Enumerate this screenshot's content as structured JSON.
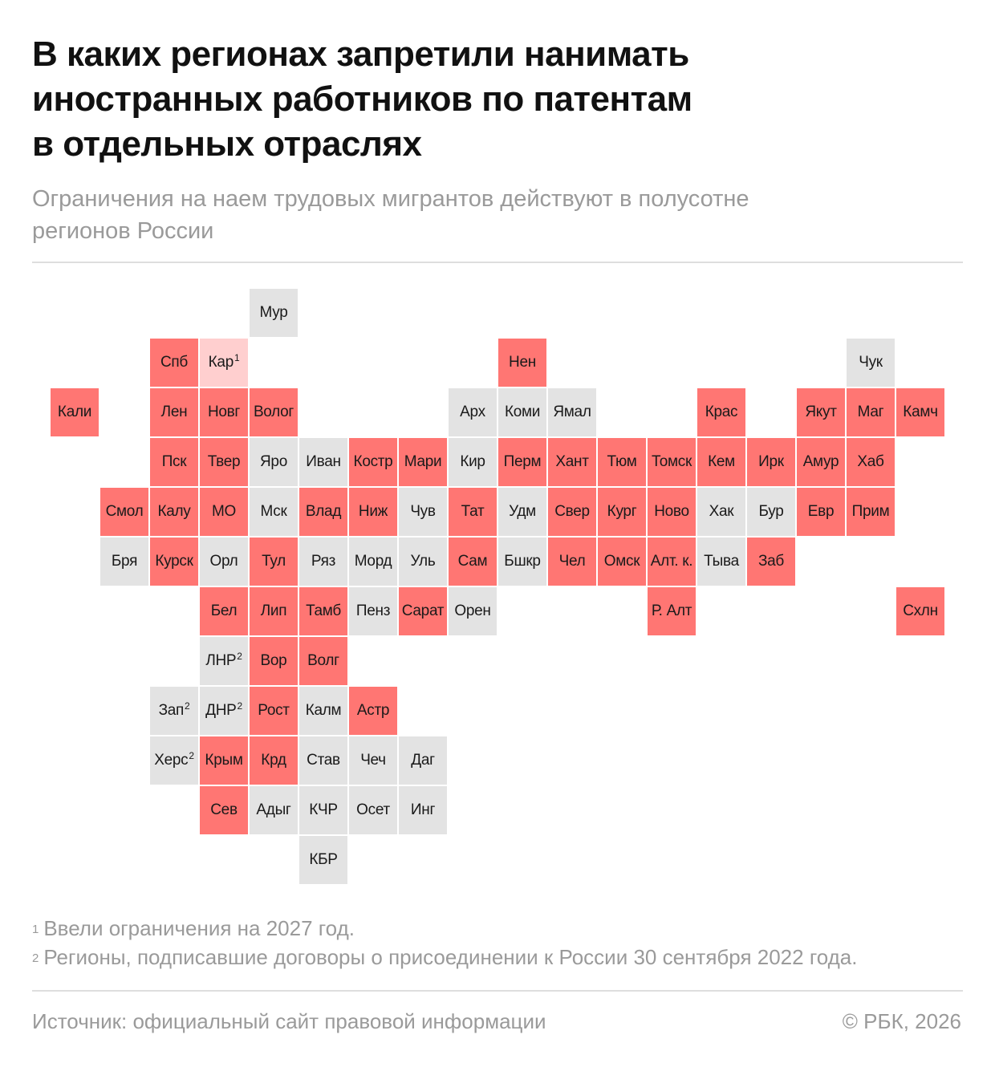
{
  "title_lines": [
    "В каких регионах запретили нанимать",
    "иностранных работников по патентам",
    "в отдельных отраслях"
  ],
  "subtitle_lines": [
    "Ограничения на наем трудовых мигрантов действуют в полусотне",
    "регионов России"
  ],
  "colors": {
    "ban": "#ff7673",
    "none": "#e3e3e3",
    "ban_from_2027": "#ffcfcf"
  },
  "regions": [
    {
      "label": "Мур",
      "status": "none",
      "row": 0,
      "col": 5
    },
    {
      "label": "Спб",
      "status": "ban",
      "row": 1,
      "col": 3
    },
    {
      "label": "Кар",
      "sup": "1",
      "status": "y2027",
      "row": 1,
      "col": 4
    },
    {
      "label": "Нен",
      "status": "ban",
      "row": 1,
      "col": 10
    },
    {
      "label": "Чук",
      "status": "none",
      "row": 1,
      "col": 17
    },
    {
      "label": "Кали",
      "status": "ban",
      "row": 2,
      "col": 1
    },
    {
      "label": "Лен",
      "status": "ban",
      "row": 2,
      "col": 3
    },
    {
      "label": "Новг",
      "status": "ban",
      "row": 2,
      "col": 4
    },
    {
      "label": "Волог",
      "status": "ban",
      "row": 2,
      "col": 5
    },
    {
      "label": "Арх",
      "status": "none",
      "row": 2,
      "col": 9
    },
    {
      "label": "Коми",
      "status": "none",
      "row": 2,
      "col": 10
    },
    {
      "label": "Ямал",
      "status": "none",
      "row": 2,
      "col": 11
    },
    {
      "label": "Крас",
      "status": "ban",
      "row": 2,
      "col": 14
    },
    {
      "label": "Якут",
      "status": "ban",
      "row": 2,
      "col": 16
    },
    {
      "label": "Маг",
      "status": "ban",
      "row": 2,
      "col": 17
    },
    {
      "label": "Камч",
      "status": "ban",
      "row": 2,
      "col": 18
    },
    {
      "label": "Пск",
      "status": "ban",
      "row": 3,
      "col": 3
    },
    {
      "label": "Твер",
      "status": "ban",
      "row": 3,
      "col": 4
    },
    {
      "label": "Яро",
      "status": "none",
      "row": 3,
      "col": 5
    },
    {
      "label": "Иван",
      "status": "none",
      "row": 3,
      "col": 6
    },
    {
      "label": "Костр",
      "status": "ban",
      "row": 3,
      "col": 7
    },
    {
      "label": "Мари",
      "status": "ban",
      "row": 3,
      "col": 8
    },
    {
      "label": "Кир",
      "status": "none",
      "row": 3,
      "col": 9
    },
    {
      "label": "Перм",
      "status": "ban",
      "row": 3,
      "col": 10
    },
    {
      "label": "Хант",
      "status": "ban",
      "row": 3,
      "col": 11
    },
    {
      "label": "Тюм",
      "status": "ban",
      "row": 3,
      "col": 12
    },
    {
      "label": "Томск",
      "status": "ban",
      "row": 3,
      "col": 13
    },
    {
      "label": "Кем",
      "status": "ban",
      "row": 3,
      "col": 14
    },
    {
      "label": "Ирк",
      "status": "ban",
      "row": 3,
      "col": 15
    },
    {
      "label": "Амур",
      "status": "ban",
      "row": 3,
      "col": 16
    },
    {
      "label": "Хаб",
      "status": "ban",
      "row": 3,
      "col": 17
    },
    {
      "label": "Смол",
      "status": "ban",
      "row": 4,
      "col": 2
    },
    {
      "label": "Калу",
      "status": "ban",
      "row": 4,
      "col": 3
    },
    {
      "label": "МО",
      "status": "ban",
      "row": 4,
      "col": 4
    },
    {
      "label": "Мск",
      "status": "none",
      "row": 4,
      "col": 5
    },
    {
      "label": "Влад",
      "status": "ban",
      "row": 4,
      "col": 6
    },
    {
      "label": "Ниж",
      "status": "ban",
      "row": 4,
      "col": 7
    },
    {
      "label": "Чув",
      "status": "none",
      "row": 4,
      "col": 8
    },
    {
      "label": "Тат",
      "status": "ban",
      "row": 4,
      "col": 9
    },
    {
      "label": "Удм",
      "status": "none",
      "row": 4,
      "col": 10
    },
    {
      "label": "Свер",
      "status": "ban",
      "row": 4,
      "col": 11
    },
    {
      "label": "Кург",
      "status": "ban",
      "row": 4,
      "col": 12
    },
    {
      "label": "Ново",
      "status": "ban",
      "row": 4,
      "col": 13
    },
    {
      "label": "Хак",
      "status": "none",
      "row": 4,
      "col": 14
    },
    {
      "label": "Бур",
      "status": "none",
      "row": 4,
      "col": 15
    },
    {
      "label": "Евр",
      "status": "ban",
      "row": 4,
      "col": 16
    },
    {
      "label": "Прим",
      "status": "ban",
      "row": 4,
      "col": 17
    },
    {
      "label": "Бря",
      "status": "none",
      "row": 5,
      "col": 2
    },
    {
      "label": "Курск",
      "status": "ban",
      "row": 5,
      "col": 3
    },
    {
      "label": "Орл",
      "status": "none",
      "row": 5,
      "col": 4
    },
    {
      "label": "Тул",
      "status": "ban",
      "row": 5,
      "col": 5
    },
    {
      "label": "Ряз",
      "status": "none",
      "row": 5,
      "col": 6
    },
    {
      "label": "Морд",
      "status": "none",
      "row": 5,
      "col": 7
    },
    {
      "label": "Уль",
      "status": "none",
      "row": 5,
      "col": 8
    },
    {
      "label": "Сам",
      "status": "ban",
      "row": 5,
      "col": 9
    },
    {
      "label": "Бшкр",
      "status": "none",
      "row": 5,
      "col": 10
    },
    {
      "label": "Чел",
      "status": "ban",
      "row": 5,
      "col": 11
    },
    {
      "label": "Омск",
      "status": "ban",
      "row": 5,
      "col": 12
    },
    {
      "label": "Алт. к.",
      "status": "ban",
      "row": 5,
      "col": 13
    },
    {
      "label": "Тыва",
      "status": "none",
      "row": 5,
      "col": 14
    },
    {
      "label": "Заб",
      "status": "ban",
      "row": 5,
      "col": 15
    },
    {
      "label": "Бел",
      "status": "ban",
      "row": 6,
      "col": 4
    },
    {
      "label": "Лип",
      "status": "ban",
      "row": 6,
      "col": 5
    },
    {
      "label": "Тамб",
      "status": "ban",
      "row": 6,
      "col": 6
    },
    {
      "label": "Пенз",
      "status": "none",
      "row": 6,
      "col": 7
    },
    {
      "label": "Сарат",
      "status": "ban",
      "row": 6,
      "col": 8
    },
    {
      "label": "Орен",
      "status": "none",
      "row": 6,
      "col": 9
    },
    {
      "label": "Р. Алт",
      "status": "ban",
      "row": 6,
      "col": 13
    },
    {
      "label": "Схлн",
      "status": "ban",
      "row": 6,
      "col": 18
    },
    {
      "label": "ЛНР",
      "sup": "2",
      "status": "none",
      "row": 7,
      "col": 4
    },
    {
      "label": "Вор",
      "status": "ban",
      "row": 7,
      "col": 5
    },
    {
      "label": "Волг",
      "status": "ban",
      "row": 7,
      "col": 6
    },
    {
      "label": "Зап",
      "sup": "2",
      "status": "none",
      "row": 8,
      "col": 3
    },
    {
      "label": "ДНР",
      "sup": "2",
      "status": "none",
      "row": 8,
      "col": 4
    },
    {
      "label": "Рост",
      "status": "ban",
      "row": 8,
      "col": 5
    },
    {
      "label": "Калм",
      "status": "none",
      "row": 8,
      "col": 6
    },
    {
      "label": "Астр",
      "status": "ban",
      "row": 8,
      "col": 7
    },
    {
      "label": "Херс",
      "sup": "2",
      "status": "none",
      "row": 9,
      "col": 3
    },
    {
      "label": "Крым",
      "status": "ban",
      "row": 9,
      "col": 4
    },
    {
      "label": "Крд",
      "status": "ban",
      "row": 9,
      "col": 5
    },
    {
      "label": "Став",
      "status": "none",
      "row": 9,
      "col": 6
    },
    {
      "label": "Чеч",
      "status": "none",
      "row": 9,
      "col": 7
    },
    {
      "label": "Даг",
      "status": "none",
      "row": 9,
      "col": 8
    },
    {
      "label": "Сев",
      "status": "ban",
      "row": 10,
      "col": 4
    },
    {
      "label": "Адыг",
      "status": "none",
      "row": 10,
      "col": 5
    },
    {
      "label": "КЧР",
      "status": "none",
      "row": 10,
      "col": 6
    },
    {
      "label": "Осет",
      "status": "none",
      "row": 10,
      "col": 7
    },
    {
      "label": "Инг",
      "status": "none",
      "row": 10,
      "col": 8
    },
    {
      "label": "КБР",
      "status": "none",
      "row": 11,
      "col": 6
    }
  ],
  "notes": [
    {
      "mark": "1",
      "text": "Ввели ограничения на 2027 год."
    },
    {
      "mark": "2",
      "text": "Регионы, подписавшие договоры о присоединении к России 30 сентября 2022 года."
    }
  ],
  "footer": {
    "source": "Источник: официальный сайт правовой информации",
    "copyright": "© РБК, 2026"
  }
}
